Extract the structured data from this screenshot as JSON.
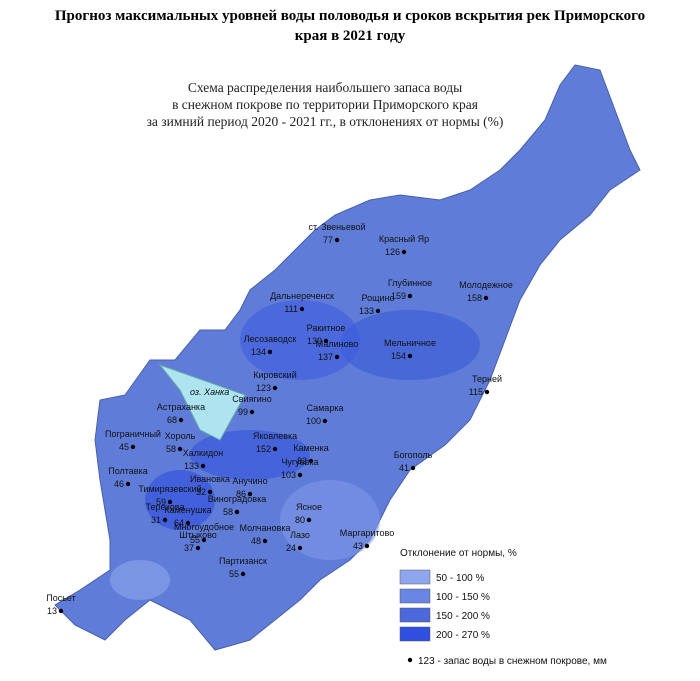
{
  "header": {
    "title_lines": [
      "Прогноз максимальных уровней воды половодья и сроков вскрытия рек Приморского",
      "края в 2021 году"
    ]
  },
  "map": {
    "subtitle_lines": [
      "Схема распределения наибольшего запаса воды",
      "в снежном покрове по территории Приморского края",
      "за зимний период 2020 - 2021 гг., в отклонениях от нормы (%)"
    ],
    "lake_label": "оз. Ханка",
    "stations": [
      {
        "name": "ст. Звеньевой",
        "value": 77
      },
      {
        "name": "Красный Яр",
        "value": 126
      },
      {
        "name": "Глубинное",
        "value": 159
      },
      {
        "name": "Молодежное",
        "value": 158
      },
      {
        "name": "Рощино",
        "value": 133
      },
      {
        "name": "Дальнереченск",
        "value": 111
      },
      {
        "name": "Лесозаводск",
        "value": 134
      },
      {
        "name": "Ракитное",
        "value": 139
      },
      {
        "name": "Малиново",
        "value": 137
      },
      {
        "name": "Мельничное",
        "value": 154
      },
      {
        "name": "Кировский",
        "value": 123
      },
      {
        "name": "Свиягино",
        "value": 99
      },
      {
        "name": "Астраханка",
        "value": 68
      },
      {
        "name": "Самарка",
        "value": 100
      },
      {
        "name": "Терней",
        "value": 115
      },
      {
        "name": "Пограничный",
        "value": 45
      },
      {
        "name": "Хороль",
        "value": 58
      },
      {
        "name": "Яковлевка",
        "value": 152
      },
      {
        "name": "Каменка",
        "value": 82
      },
      {
        "name": "Халкидон",
        "value": 133
      },
      {
        "name": "Чугуевка",
        "value": 103
      },
      {
        "name": "Богополь",
        "value": 41
      },
      {
        "name": "Полтавка",
        "value": 46
      },
      {
        "name": "Ивановка",
        "value": 32
      },
      {
        "name": "Анучино",
        "value": 86
      },
      {
        "name": "Тимирязевский",
        "value": 59
      },
      {
        "name": "Виноградовка",
        "value": 58
      },
      {
        "name": "Терехова",
        "value": 31
      },
      {
        "name": "Каменушка",
        "value": 64
      },
      {
        "name": "Ясное",
        "value": 80
      },
      {
        "name": "Многоудобное",
        "value": 55
      },
      {
        "name": "Молчановка",
        "value": 48
      },
      {
        "name": "Лазо",
        "value": 24
      },
      {
        "name": "Маргаритово",
        "value": 43
      },
      {
        "name": "Штыково",
        "value": 37
      },
      {
        "name": "Партизанск",
        "value": 55
      },
      {
        "name": "Посьет",
        "value": 13
      }
    ]
  },
  "legend": {
    "title": "Отклонение от нормы, %",
    "items": [
      {
        "label": "50 - 100 %",
        "color": "#8ea6ee"
      },
      {
        "label": "100 - 150 %",
        "color": "#6a86e4"
      },
      {
        "label": "150 - 200 %",
        "color": "#4b68dc"
      },
      {
        "label": "200 - 270 %",
        "color": "#2f4fe0"
      }
    ],
    "dot_note": "123 - запас воды в снежном покрове, мм"
  }
}
